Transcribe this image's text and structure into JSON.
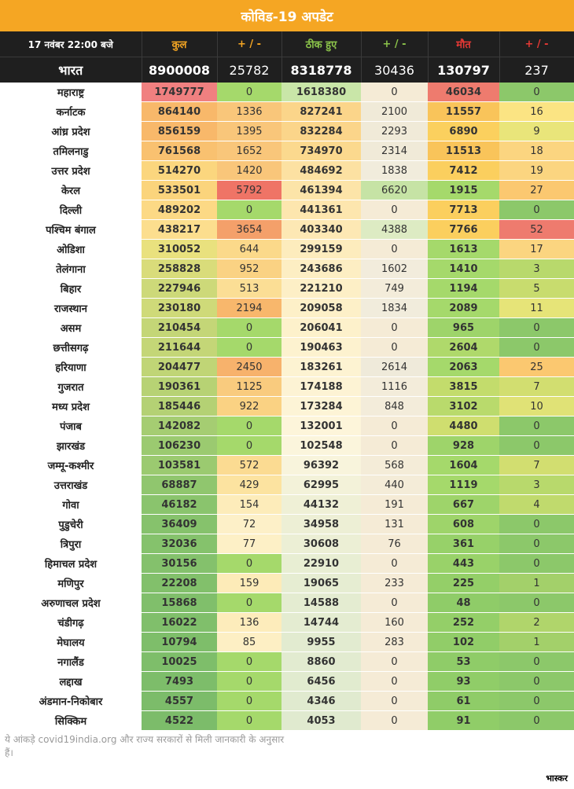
{
  "title": "कोविड-19 अपडेट",
  "header": {
    "date": "17 नवंबर 22:00 बजे",
    "total": "कुल",
    "delta1": "+ / -",
    "recovered": "ठीक हुए",
    "delta2": "+ / -",
    "deaths": "मौत",
    "delta3": "+ / -"
  },
  "india": {
    "name": "भारत",
    "total": "8900008",
    "total_change": "25782",
    "recovered": "8318778",
    "recovered_change": "30436",
    "deaths": "130797",
    "deaths_change": "237"
  },
  "states": [
    {
      "name": "महाराष्ट्र",
      "total": "1749777",
      "tc": "0",
      "rec": "1618380",
      "rc": "0",
      "death": "46034",
      "dc": "0",
      "colors": [
        "#f08080",
        "#a5d96b",
        "#c9e6a8",
        "#f5ebd6",
        "#ee7b6e",
        "#8cc86a"
      ]
    },
    {
      "name": "कर्नाटक",
      "total": "864140",
      "tc": "1336",
      "rec": "827241",
      "rc": "2100",
      "death": "11557",
      "dc": "16",
      "colors": [
        "#f8b86a",
        "#f9c67a",
        "#fbd58a",
        "#f0ead8",
        "#f9c45a",
        "#fbe483"
      ]
    },
    {
      "name": "आंध्र प्रदेश",
      "total": "856159",
      "tc": "1395",
      "rec": "832284",
      "rc": "2293",
      "death": "6890",
      "dc": "9",
      "colors": [
        "#f8b86a",
        "#f9c67a",
        "#fbd58a",
        "#f0ead8",
        "#fbd05e",
        "#e9e57a"
      ]
    },
    {
      "name": "तमिलनाडु",
      "total": "761568",
      "tc": "1652",
      "rec": "734970",
      "rc": "2314",
      "death": "11513",
      "dc": "18",
      "colors": [
        "#f9c170",
        "#f9c67a",
        "#fbd98e",
        "#f0ead8",
        "#f9c45a",
        "#fbd580"
      ]
    },
    {
      "name": "उत्तर प्रदेश",
      "total": "514270",
      "tc": "1420",
      "rec": "484692",
      "rc": "1838",
      "death": "7412",
      "dc": "19",
      "colors": [
        "#fbd67e",
        "#f9c67a",
        "#fce1a2",
        "#f1ecdc",
        "#fbcf5e",
        "#fbd580"
      ]
    },
    {
      "name": "केरल",
      "total": "533501",
      "tc": "5792",
      "rec": "461394",
      "rc": "6620",
      "death": "1915",
      "dc": "27",
      "colors": [
        "#fbd47c",
        "#ef7466",
        "#fce4a8",
        "#c6e3a5",
        "#a5d96b",
        "#fbc870"
      ]
    },
    {
      "name": "दिल्ली",
      "total": "489202",
      "tc": "0",
      "rec": "441361",
      "rc": "0",
      "death": "7713",
      "dc": "0",
      "colors": [
        "#fcd985",
        "#a5d96b",
        "#fde6ae",
        "#f5ebd6",
        "#fbcf5e",
        "#8cc86a"
      ]
    },
    {
      "name": "पश्चिम बंगाल",
      "total": "438217",
      "tc": "3654",
      "rec": "403340",
      "rc": "4388",
      "death": "7766",
      "dc": "52",
      "colors": [
        "#fcde8e",
        "#f4a06a",
        "#fde8b4",
        "#ddebc3",
        "#fbcf5e",
        "#ee7b6e"
      ]
    },
    {
      "name": "ओडिशा",
      "total": "310052",
      "tc": "644",
      "rec": "299159",
      "rc": "0",
      "death": "1613",
      "dc": "17",
      "colors": [
        "#e9e17e",
        "#fbd98a",
        "#fdecbd",
        "#f5ebd6",
        "#a5d96b",
        "#fbd580"
      ]
    },
    {
      "name": "तेलंगाना",
      "total": "258828",
      "tc": "952",
      "rec": "243686",
      "rc": "1602",
      "death": "1410",
      "dc": "3",
      "colors": [
        "#d9dc7a",
        "#fad283",
        "#fdeec3",
        "#f2ecdc",
        "#a5d96b",
        "#b8d96c"
      ]
    },
    {
      "name": "बिहार",
      "total": "227946",
      "tc": "513",
      "rec": "221210",
      "rc": "749",
      "death": "1194",
      "dc": "5",
      "colors": [
        "#cdd979",
        "#fbde95",
        "#fdefc6",
        "#f3ecda",
        "#a5d96b",
        "#c8dc6e"
      ]
    },
    {
      "name": "राजस्थान",
      "total": "230180",
      "tc": "2194",
      "rec": "209058",
      "rc": "1834",
      "death": "2089",
      "dc": "11",
      "colors": [
        "#cfda79",
        "#f8b76c",
        "#fdf0c8",
        "#f1ecdc",
        "#a5d96b",
        "#e6e478"
      ]
    },
    {
      "name": "असम",
      "total": "210454",
      "tc": "0",
      "rec": "206041",
      "rc": "0",
      "death": "965",
      "dc": "0",
      "colors": [
        "#c4d677",
        "#a5d96b",
        "#fdf1cb",
        "#f5ebd6",
        "#9ed46a",
        "#8cc86a"
      ]
    },
    {
      "name": "छत्तीसगढ़",
      "total": "211644",
      "tc": "0",
      "rec": "190463",
      "rc": "0",
      "death": "2604",
      "dc": "0",
      "colors": [
        "#c4d677",
        "#a5d96b",
        "#fdf2cf",
        "#f5ebd6",
        "#afd96b",
        "#8cc86a"
      ]
    },
    {
      "name": "हरियाणा",
      "total": "204477",
      "tc": "2450",
      "rec": "183261",
      "rc": "2614",
      "death": "2063",
      "dc": "25",
      "colors": [
        "#c0d576",
        "#f7b26c",
        "#fdf3d2",
        "#efeada",
        "#a5d96b",
        "#fbc870"
      ]
    },
    {
      "name": "गुजरात",
      "total": "190361",
      "tc": "1125",
      "rec": "174188",
      "rc": "1116",
      "death": "3815",
      "dc": "7",
      "colors": [
        "#b7d274",
        "#f9cb7e",
        "#fdf3d4",
        "#f3ecda",
        "#c3dc6c",
        "#d2de70"
      ]
    },
    {
      "name": "मध्य प्रदेश",
      "total": "185446",
      "tc": "922",
      "rec": "173284",
      "rc": "848",
      "death": "3102",
      "dc": "10",
      "colors": [
        "#b4d174",
        "#fad283",
        "#fdf4d6",
        "#f3ecda",
        "#b9da6c",
        "#e0e276"
      ]
    },
    {
      "name": "पंजाब",
      "total": "142082",
      "tc": "0",
      "rec": "132001",
      "rc": "0",
      "death": "4480",
      "dc": "0",
      "colors": [
        "#a5cd72",
        "#a5d96b",
        "#fdf5da",
        "#f5ebd6",
        "#cfde6f",
        "#8cc86a"
      ]
    },
    {
      "name": "झारखंड",
      "total": "106230",
      "tc": "0",
      "rec": "102548",
      "rc": "0",
      "death": "928",
      "dc": "0",
      "colors": [
        "#9bca70",
        "#a5d96b",
        "#fbf5dc",
        "#f5ebd6",
        "#9ed46a",
        "#8cc86a"
      ]
    },
    {
      "name": "जम्मू-कश्मीर",
      "total": "103581",
      "tc": "572",
      "rec": "96392",
      "rc": "568",
      "death": "1604",
      "dc": "7",
      "colors": [
        "#9bca70",
        "#fbdb92",
        "#f8f4dc",
        "#f4ecd8",
        "#a5d96b",
        "#d2de70"
      ]
    },
    {
      "name": "उत्तराखंड",
      "total": "68887",
      "tc": "429",
      "rec": "62995",
      "rc": "440",
      "death": "1119",
      "dc": "3",
      "colors": [
        "#90c66e",
        "#fce3a0",
        "#f3f2d9",
        "#f4ecd8",
        "#a5d96b",
        "#b8d96c"
      ]
    },
    {
      "name": "गोवा",
      "total": "46182",
      "tc": "154",
      "rec": "44132",
      "rc": "191",
      "death": "667",
      "dc": "4",
      "colors": [
        "#8ac46d",
        "#fdecba",
        "#eff0d6",
        "#f5ebd6",
        "#9ed46a",
        "#c0da6d"
      ]
    },
    {
      "name": "पुडुचेरी",
      "total": "36409",
      "tc": "72",
      "rec": "34958",
      "rc": "131",
      "death": "608",
      "dc": "0",
      "colors": [
        "#86c26c",
        "#fdf0c8",
        "#edefd5",
        "#f5ebd6",
        "#9ed46a",
        "#8cc86a"
      ]
    },
    {
      "name": "त्रिपुरा",
      "total": "32036",
      "tc": "77",
      "rec": "30608",
      "rc": "76",
      "death": "361",
      "dc": "0",
      "colors": [
        "#85c26c",
        "#fdf0c6",
        "#ecefd5",
        "#f5ebd6",
        "#97d169",
        "#8cc86a"
      ]
    },
    {
      "name": "हिमाचल प्रदेश",
      "total": "30156",
      "tc": "0",
      "rec": "22910",
      "rc": "0",
      "death": "443",
      "dc": "0",
      "colors": [
        "#84c16c",
        "#a5d96b",
        "#e8eed3",
        "#f5ebd6",
        "#99d269",
        "#8cc86a"
      ]
    },
    {
      "name": "मणिपुर",
      "total": "22208",
      "tc": "159",
      "rec": "19065",
      "rc": "233",
      "death": "225",
      "dc": "1",
      "colors": [
        "#82c06b",
        "#fdebb8",
        "#e6edd2",
        "#f5ebd6",
        "#94cf68",
        "#a3d06a"
      ]
    },
    {
      "name": "अरुणाचल प्रदेश",
      "total": "15868",
      "tc": "0",
      "rec": "14588",
      "rc": "0",
      "death": "48",
      "dc": "0",
      "colors": [
        "#80bf6b",
        "#a5d96b",
        "#e4ecd1",
        "#f5ebd6",
        "#8fcc68",
        "#8cc86a"
      ]
    },
    {
      "name": "चंडीगढ़",
      "total": "16022",
      "tc": "136",
      "rec": "14744",
      "rc": "160",
      "death": "252",
      "dc": "2",
      "colors": [
        "#80bf6b",
        "#fdecbb",
        "#e4ecd1",
        "#f5ebd6",
        "#94cf68",
        "#b0d56b"
      ]
    },
    {
      "name": "मेघालय",
      "total": "10794",
      "tc": "85",
      "rec": "9955",
      "rc": "283",
      "death": "102",
      "dc": "1",
      "colors": [
        "#7ebe6a",
        "#fdefc4",
        "#e2ebd0",
        "#f5ebd6",
        "#91cd68",
        "#a3d06a"
      ]
    },
    {
      "name": "नगालैंड",
      "total": "10025",
      "tc": "0",
      "rec": "8860",
      "rc": "0",
      "death": "53",
      "dc": "0",
      "colors": [
        "#7ebe6a",
        "#a5d96b",
        "#e2ebd0",
        "#f5ebd6",
        "#8fcc68",
        "#8cc86a"
      ]
    },
    {
      "name": "लद्दाख",
      "total": "7493",
      "tc": "0",
      "rec": "6456",
      "rc": "0",
      "death": "93",
      "dc": "0",
      "colors": [
        "#7dbd6a",
        "#a5d96b",
        "#e1ebcf",
        "#f5ebd6",
        "#90cd68",
        "#8cc86a"
      ]
    },
    {
      "name": "अंडमान-निकोबार",
      "total": "4557",
      "tc": "0",
      "rec": "4346",
      "rc": "0",
      "death": "61",
      "dc": "0",
      "colors": [
        "#7cbc6a",
        "#a5d96b",
        "#e0eacf",
        "#f5ebd6",
        "#8fcc68",
        "#8cc86a"
      ]
    },
    {
      "name": "सिक्किम",
      "total": "4522",
      "tc": "0",
      "rec": "4053",
      "rc": "0",
      "death": "91",
      "dc": "0",
      "colors": [
        "#7cbc6a",
        "#a5d96b",
        "#e0eacf",
        "#f5ebd6",
        "#90cd68",
        "#8cc86a"
      ]
    }
  ],
  "footnote": "ये आंकड़े covid19india.org और राज्य सरकारों से मिली जानकारी के अनुसार हैं।",
  "brand": "भास्कर"
}
